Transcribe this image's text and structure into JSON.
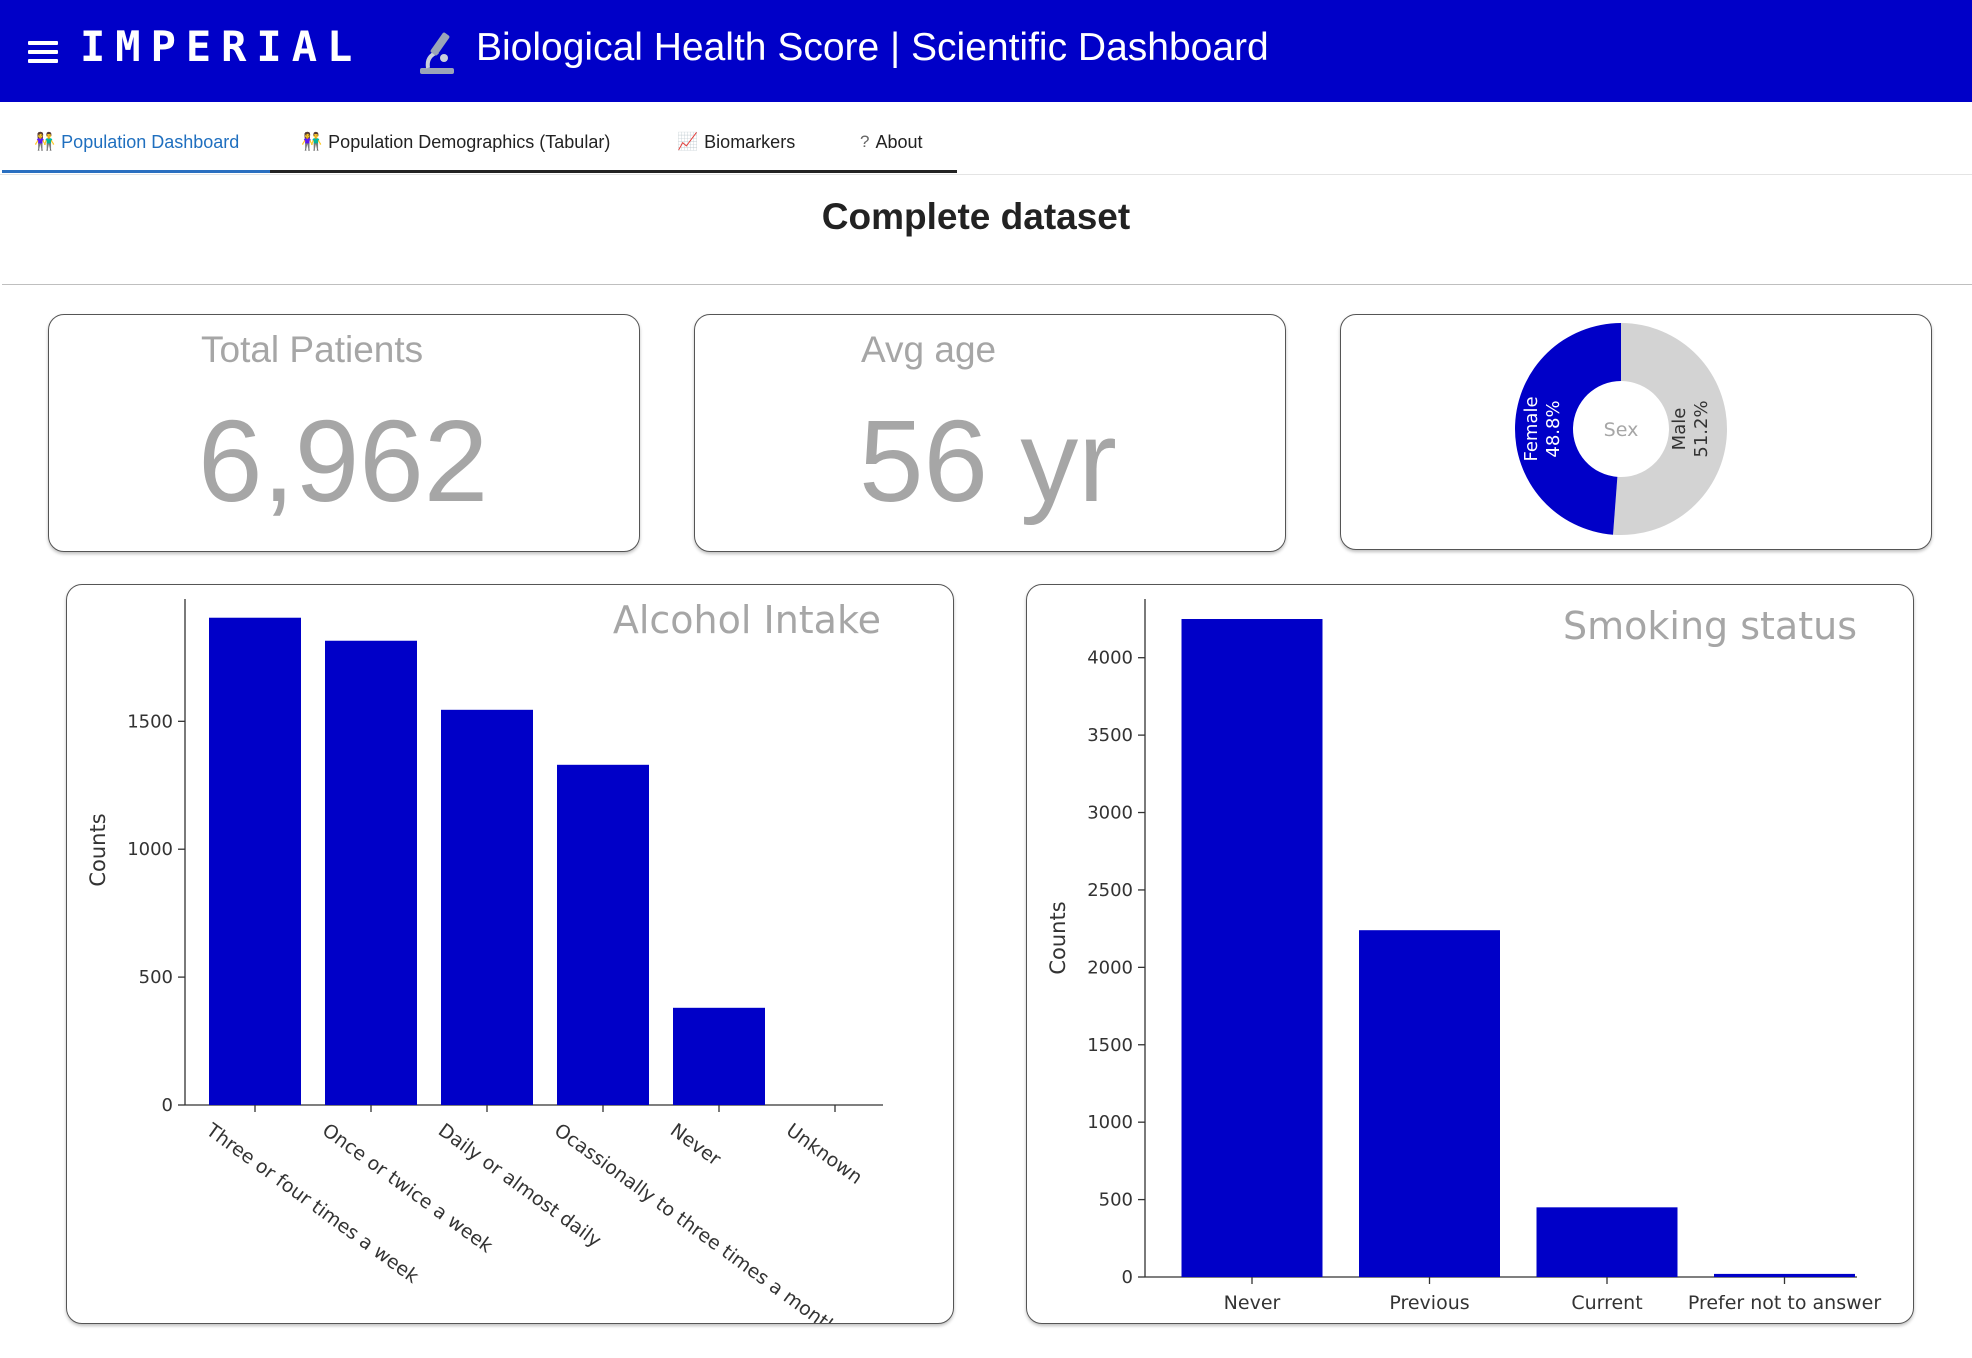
{
  "header": {
    "brand": "IMPERIAL",
    "title": "Biological Health Score | Scientific Dashboard",
    "bg_color": "#0000c8",
    "menu_icon": "hamburger-menu-icon",
    "title_icon": "microscope-icon"
  },
  "tabs": [
    {
      "label": "Population Dashboard",
      "icon": "people-icon",
      "active": true
    },
    {
      "label": "Population Demographics (Tabular)",
      "icon": "people-icon",
      "active": false
    },
    {
      "label": "Biomarkers",
      "icon": "chart-increasing-icon",
      "active": false
    },
    {
      "label": "About",
      "icon": "question-mark-icon",
      "active": false
    }
  ],
  "page_title": "Complete dataset",
  "kpis": {
    "total_patients": {
      "label": "Total Patients",
      "value": "6,962"
    },
    "avg_age": {
      "label": "Avg age",
      "value": "56 yr"
    }
  },
  "colors": {
    "accent": "#0000c8",
    "muted": "#a6a6a6",
    "pie_other": "#d3d3d3"
  },
  "chart_data": [
    {
      "type": "pie",
      "hole": true,
      "center_label": "Sex",
      "slices": [
        {
          "label": "Female",
          "percent_text": "48.8%",
          "value": 48.8,
          "color": "#0000c8"
        },
        {
          "label": "Male",
          "percent_text": "51.2%",
          "value": 51.2,
          "color": "#d3d3d3"
        }
      ]
    },
    {
      "type": "bar",
      "title": "Alcohol Intake",
      "ylabel": "Counts",
      "categories": [
        "Three or four times a week",
        "Once or twice a week",
        "Daily or almost daily",
        "Ocassionally to three times a month",
        "Never",
        "Unknown"
      ],
      "values": [
        1905,
        1815,
        1545,
        1330,
        380,
        0
      ],
      "ylim": [
        0,
        1900
      ],
      "yticks": [
        0,
        500,
        1000,
        1500
      ],
      "color": "#0000c8"
    },
    {
      "type": "bar",
      "title": "Smoking status",
      "ylabel": "Counts",
      "categories": [
        "Never",
        "Previous",
        "Current",
        "Prefer not to answer"
      ],
      "values": [
        4250,
        2240,
        450,
        20
      ],
      "ylim": [
        0,
        4250
      ],
      "yticks": [
        0,
        500,
        1000,
        1500,
        2000,
        2500,
        3000,
        3500,
        4000
      ],
      "color": "#0000c8"
    }
  ]
}
